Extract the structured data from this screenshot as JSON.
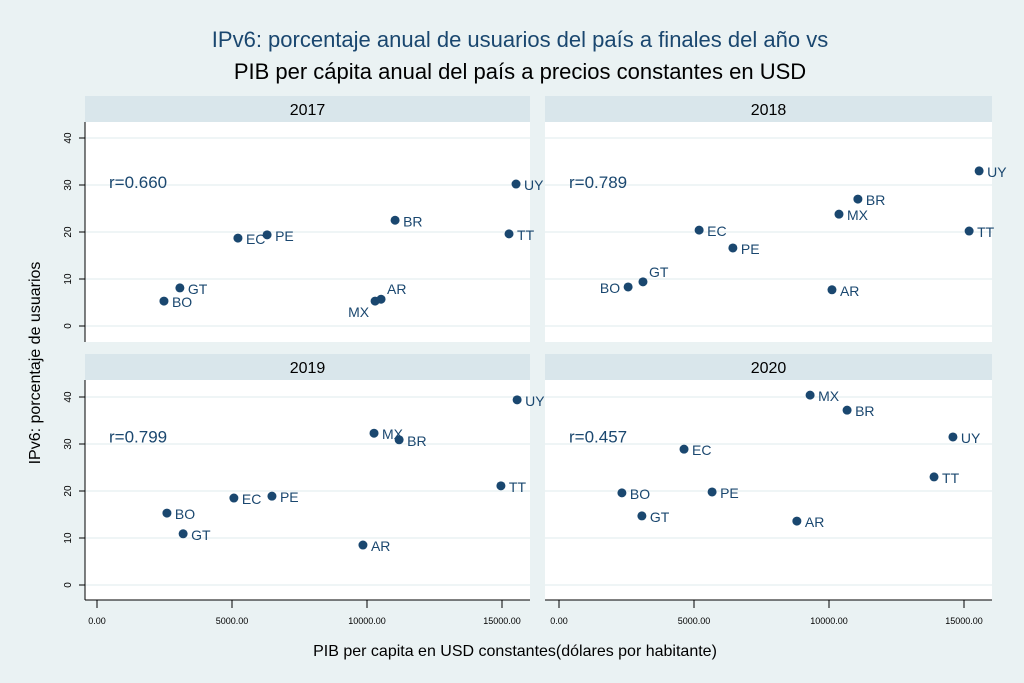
{
  "chart_data": {
    "type": "scatter",
    "title_line1": "IPv6: porcentaje anual de usuarios del país a finales del año vs",
    "title_line2": "PIB per cápita anual del país a precios constantes en USD",
    "xlabel": "PIB per capita en USD constantes(dólares por habitante)",
    "ylabel": "IPv6: porcentaje de usuarios",
    "xlim": [
      -700,
      16000
    ],
    "ylim": [
      -2,
      43
    ],
    "xticks": [
      0,
      5000,
      10000,
      15000
    ],
    "xtick_labels": [
      "0.00",
      "5000.00",
      "10000.00",
      "15000.00"
    ],
    "yticks": [
      0,
      10,
      20,
      30,
      40
    ],
    "ytick_labels": [
      "0",
      "10",
      "20",
      "30",
      "40"
    ],
    "grid": true,
    "colors": {
      "marker": "#1a476f",
      "title1": "#1a476f",
      "title2": "#000000",
      "panel_header": "#d9e6eb",
      "background": "#eaf2f3"
    },
    "panels": [
      {
        "title": "2017",
        "r_label": "r=0.660",
        "points": [
          {
            "label": "BO",
            "x": 2480,
            "y": 5.3
          },
          {
            "label": "GT",
            "x": 3070,
            "y": 8.1
          },
          {
            "label": "EC",
            "x": 5220,
            "y": 18.7
          },
          {
            "label": "PE",
            "x": 6300,
            "y": 19.4
          },
          {
            "label": "BR",
            "x": 11040,
            "y": 22.5
          },
          {
            "label": "MX",
            "x": 10300,
            "y": 5.3
          },
          {
            "label": "AR",
            "x": 10520,
            "y": 5.7
          },
          {
            "label": "UY",
            "x": 15520,
            "y": 30.2
          },
          {
            "label": "TT",
            "x": 15260,
            "y": 19.6
          }
        ]
      },
      {
        "title": "2018",
        "r_label": "r=0.789",
        "points": [
          {
            "label": "BO",
            "x": 2560,
            "y": 8.3
          },
          {
            "label": "GT",
            "x": 3110,
            "y": 9.4
          },
          {
            "label": "EC",
            "x": 5190,
            "y": 20.4
          },
          {
            "label": "PE",
            "x": 6440,
            "y": 16.6
          },
          {
            "label": "BR",
            "x": 11070,
            "y": 27.0
          },
          {
            "label": "MX",
            "x": 10370,
            "y": 23.8
          },
          {
            "label": "AR",
            "x": 10110,
            "y": 7.7
          },
          {
            "label": "UY",
            "x": 15560,
            "y": 33.0
          },
          {
            "label": "TT",
            "x": 15190,
            "y": 20.2
          }
        ]
      },
      {
        "title": "2019",
        "r_label": "r=0.799",
        "points": [
          {
            "label": "BO",
            "x": 2590,
            "y": 15.3
          },
          {
            "label": "GT",
            "x": 3190,
            "y": 10.9
          },
          {
            "label": "EC",
            "x": 5070,
            "y": 18.5
          },
          {
            "label": "PE",
            "x": 6480,
            "y": 18.9
          },
          {
            "label": "MX",
            "x": 10260,
            "y": 32.3
          },
          {
            "label": "BR",
            "x": 11190,
            "y": 30.9
          },
          {
            "label": "AR",
            "x": 9850,
            "y": 8.5
          },
          {
            "label": "UY",
            "x": 15560,
            "y": 39.4
          },
          {
            "label": "TT",
            "x": 14960,
            "y": 21.1
          }
        ]
      },
      {
        "title": "2020",
        "r_label": "r=0.457",
        "points": [
          {
            "label": "BO",
            "x": 2330,
            "y": 19.6
          },
          {
            "label": "GT",
            "x": 3070,
            "y": 14.7
          },
          {
            "label": "EC",
            "x": 4630,
            "y": 28.9
          },
          {
            "label": "PE",
            "x": 5670,
            "y": 19.8
          },
          {
            "label": "MX",
            "x": 9300,
            "y": 40.4
          },
          {
            "label": "BR",
            "x": 10670,
            "y": 37.2
          },
          {
            "label": "AR",
            "x": 8810,
            "y": 13.6
          },
          {
            "label": "UY",
            "x": 14590,
            "y": 31.5
          },
          {
            "label": "TT",
            "x": 13890,
            "y": 23.0
          }
        ]
      }
    ]
  }
}
